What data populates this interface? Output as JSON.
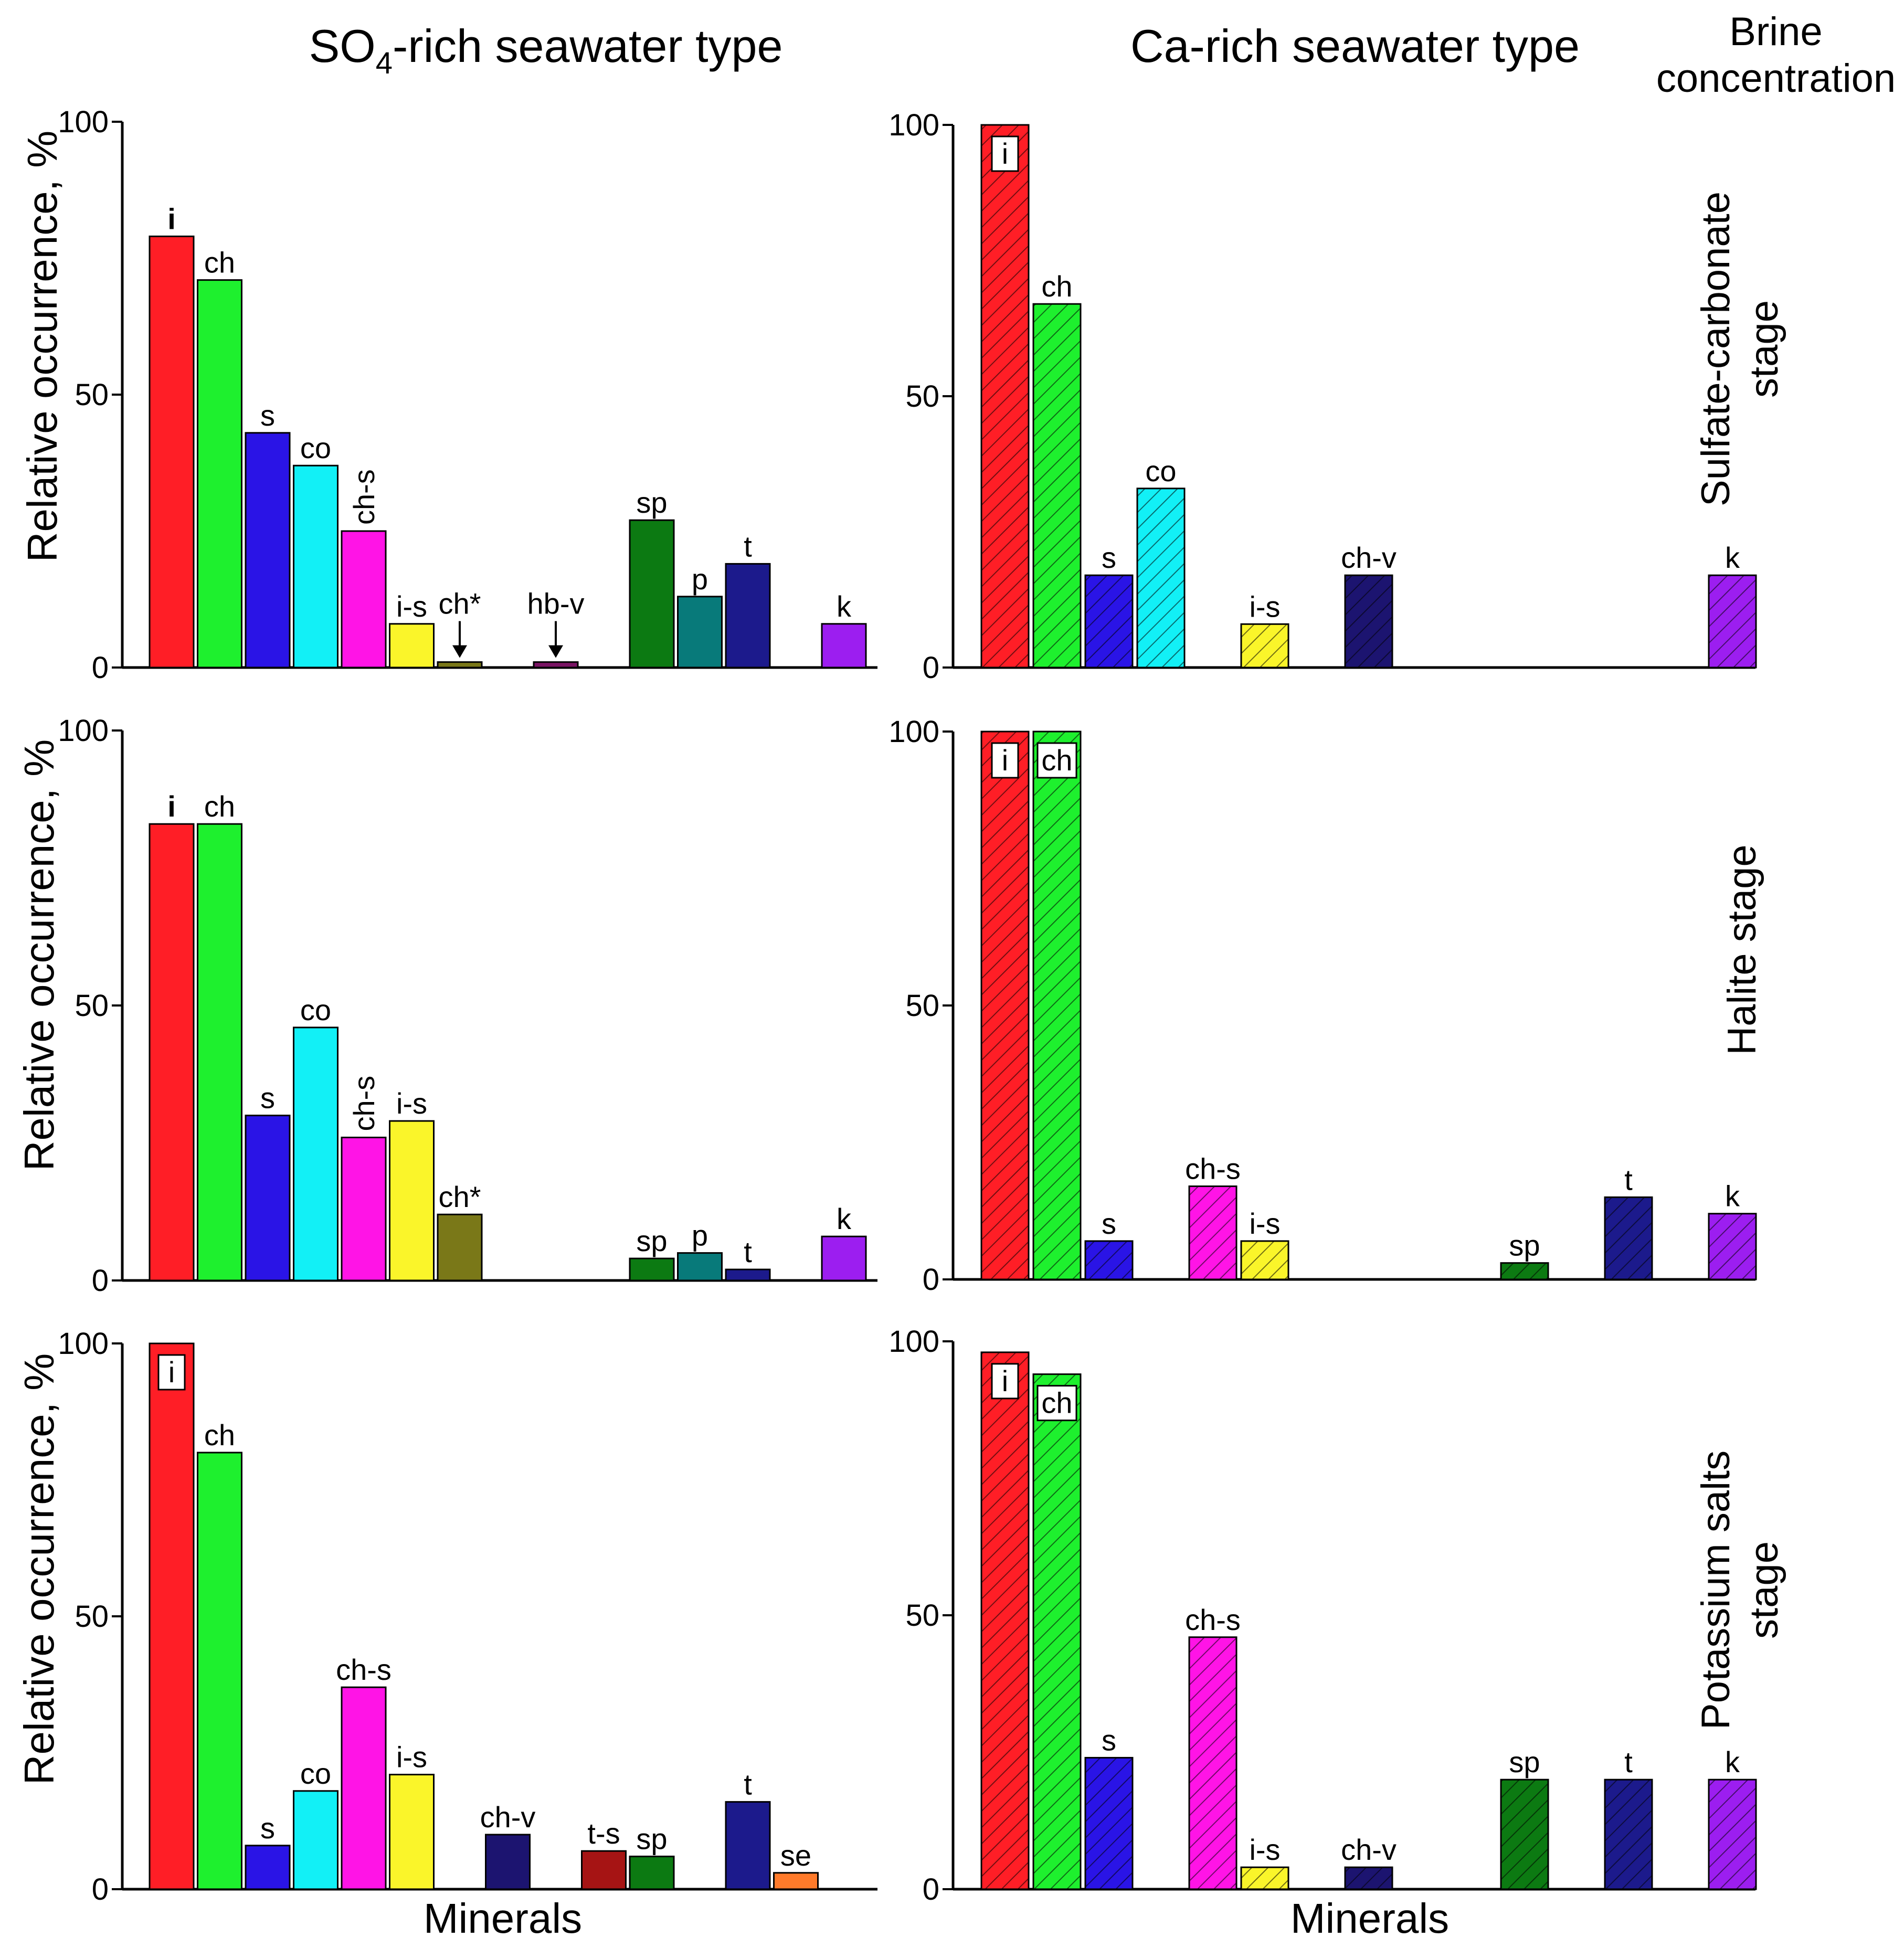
{
  "headers": {
    "col_so4": "SO",
    "col_so4_sub": "4",
    "col_so4_rest": "-rich seawater type",
    "col_ca": "Ca-rich seawater type",
    "brine_line1": "Brine",
    "brine_line2": "concentration"
  },
  "stages": {
    "row1_line1": "Sulfate-carbonate",
    "row1_line2": "stage",
    "row2_line1": "Halite stage",
    "row3_line1": "Potassium salts",
    "row3_line2": "stage"
  },
  "axis": {
    "ylabel": "Relative occurrence, %",
    "xlabel": "Minerals",
    "ticks": [
      "0",
      "50",
      "100"
    ]
  },
  "colors": {
    "i": "#ff1e26",
    "ch": "#1ef02e",
    "s": "#2a14e6",
    "co": "#12f0f6",
    "ch-s": "#ff14e6",
    "i-s": "#faf52a",
    "ch*": "#7a7818",
    "hb-v": "#7a1464",
    "sp": "#0c7a12",
    "p": "#087a7a",
    "t": "#1c1a8c",
    "k": "#9c1ef0",
    "ch-v": "#1c1470",
    "t-s": "#a61414",
    "se": "#ff7a2a"
  },
  "chart_data": [
    {
      "type": "bar",
      "panel": "SO4-rich / Sulfate-carbonate stage",
      "ylabel": "Relative occurrence, %",
      "ylim": [
        0,
        100
      ],
      "categories": [
        "i",
        "ch",
        "s",
        "co",
        "ch-s",
        "i-s",
        "ch*",
        "hb-v",
        "sp",
        "p",
        "t",
        "k"
      ],
      "slots": [
        0,
        1,
        2,
        3,
        4,
        5,
        6,
        8,
        10,
        11,
        12,
        14
      ],
      "values": [
        79,
        71,
        43,
        37,
        25,
        8,
        1,
        1,
        27,
        13,
        19,
        8
      ],
      "hatched": false,
      "arrows": [
        "ch*",
        "hb-v"
      ],
      "vertical_labels": [
        "ch-s"
      ],
      "boxed_labels": []
    },
    {
      "type": "bar",
      "panel": "Ca-rich / Sulfate-carbonate stage",
      "ylim": [
        0,
        100
      ],
      "categories": [
        "i",
        "ch",
        "s",
        "co",
        "i-s",
        "ch-v",
        "k"
      ],
      "slots": [
        0,
        1,
        2,
        3,
        5,
        7,
        14
      ],
      "values": [
        100,
        67,
        17,
        33,
        8,
        17,
        17
      ],
      "hatched": true,
      "arrows": [],
      "vertical_labels": [],
      "boxed_labels": [
        "i"
      ]
    },
    {
      "type": "bar",
      "panel": "SO4-rich / Halite stage",
      "ylabel": "Relative occurrence, %",
      "ylim": [
        0,
        100
      ],
      "categories": [
        "i",
        "ch",
        "s",
        "co",
        "ch-s",
        "i-s",
        "ch*",
        "sp",
        "p",
        "t",
        "k"
      ],
      "slots": [
        0,
        1,
        2,
        3,
        4,
        5,
        6,
        10,
        11,
        12,
        14
      ],
      "values": [
        83,
        83,
        30,
        46,
        26,
        29,
        12,
        4,
        5,
        2,
        8
      ],
      "hatched": false,
      "arrows": [],
      "vertical_labels": [
        "ch-s"
      ],
      "boxed_labels": []
    },
    {
      "type": "bar",
      "panel": "Ca-rich / Halite stage",
      "ylim": [
        0,
        100
      ],
      "categories": [
        "i",
        "ch",
        "s",
        "ch-s",
        "i-s",
        "sp",
        "t",
        "k"
      ],
      "slots": [
        0,
        1,
        2,
        4,
        5,
        10,
        12,
        14
      ],
      "values": [
        100,
        100,
        7,
        17,
        7,
        3,
        15,
        12
      ],
      "hatched": true,
      "arrows": [],
      "vertical_labels": [],
      "boxed_labels": [
        "i",
        "ch"
      ]
    },
    {
      "type": "bar",
      "panel": "SO4-rich / Potassium salts stage",
      "ylabel": "Relative occurrence, %",
      "xlabel": "Minerals",
      "ylim": [
        0,
        100
      ],
      "categories": [
        "i",
        "ch",
        "s",
        "co",
        "ch-s",
        "i-s",
        "ch-v",
        "t-s",
        "sp",
        "t",
        "se"
      ],
      "slots": [
        0,
        1,
        2,
        3,
        4,
        5,
        7,
        9,
        10,
        12,
        13
      ],
      "values": [
        100,
        80,
        8,
        18,
        37,
        21,
        10,
        7,
        6,
        16,
        3
      ],
      "hatched": false,
      "arrows": [],
      "vertical_labels": [],
      "boxed_labels": [
        "i"
      ]
    },
    {
      "type": "bar",
      "panel": "Ca-rich / Potassium salts stage",
      "xlabel": "Minerals",
      "ylim": [
        0,
        100
      ],
      "categories": [
        "i",
        "ch",
        "s",
        "ch-s",
        "i-s",
        "ch-v",
        "sp",
        "t",
        "k"
      ],
      "slots": [
        0,
        1,
        2,
        4,
        5,
        7,
        10,
        12,
        14
      ],
      "values": [
        98,
        94,
        24,
        46,
        4,
        4,
        20,
        20,
        20
      ],
      "hatched": true,
      "arrows": [],
      "vertical_labels": [],
      "boxed_labels": [
        "i",
        "ch"
      ]
    }
  ]
}
